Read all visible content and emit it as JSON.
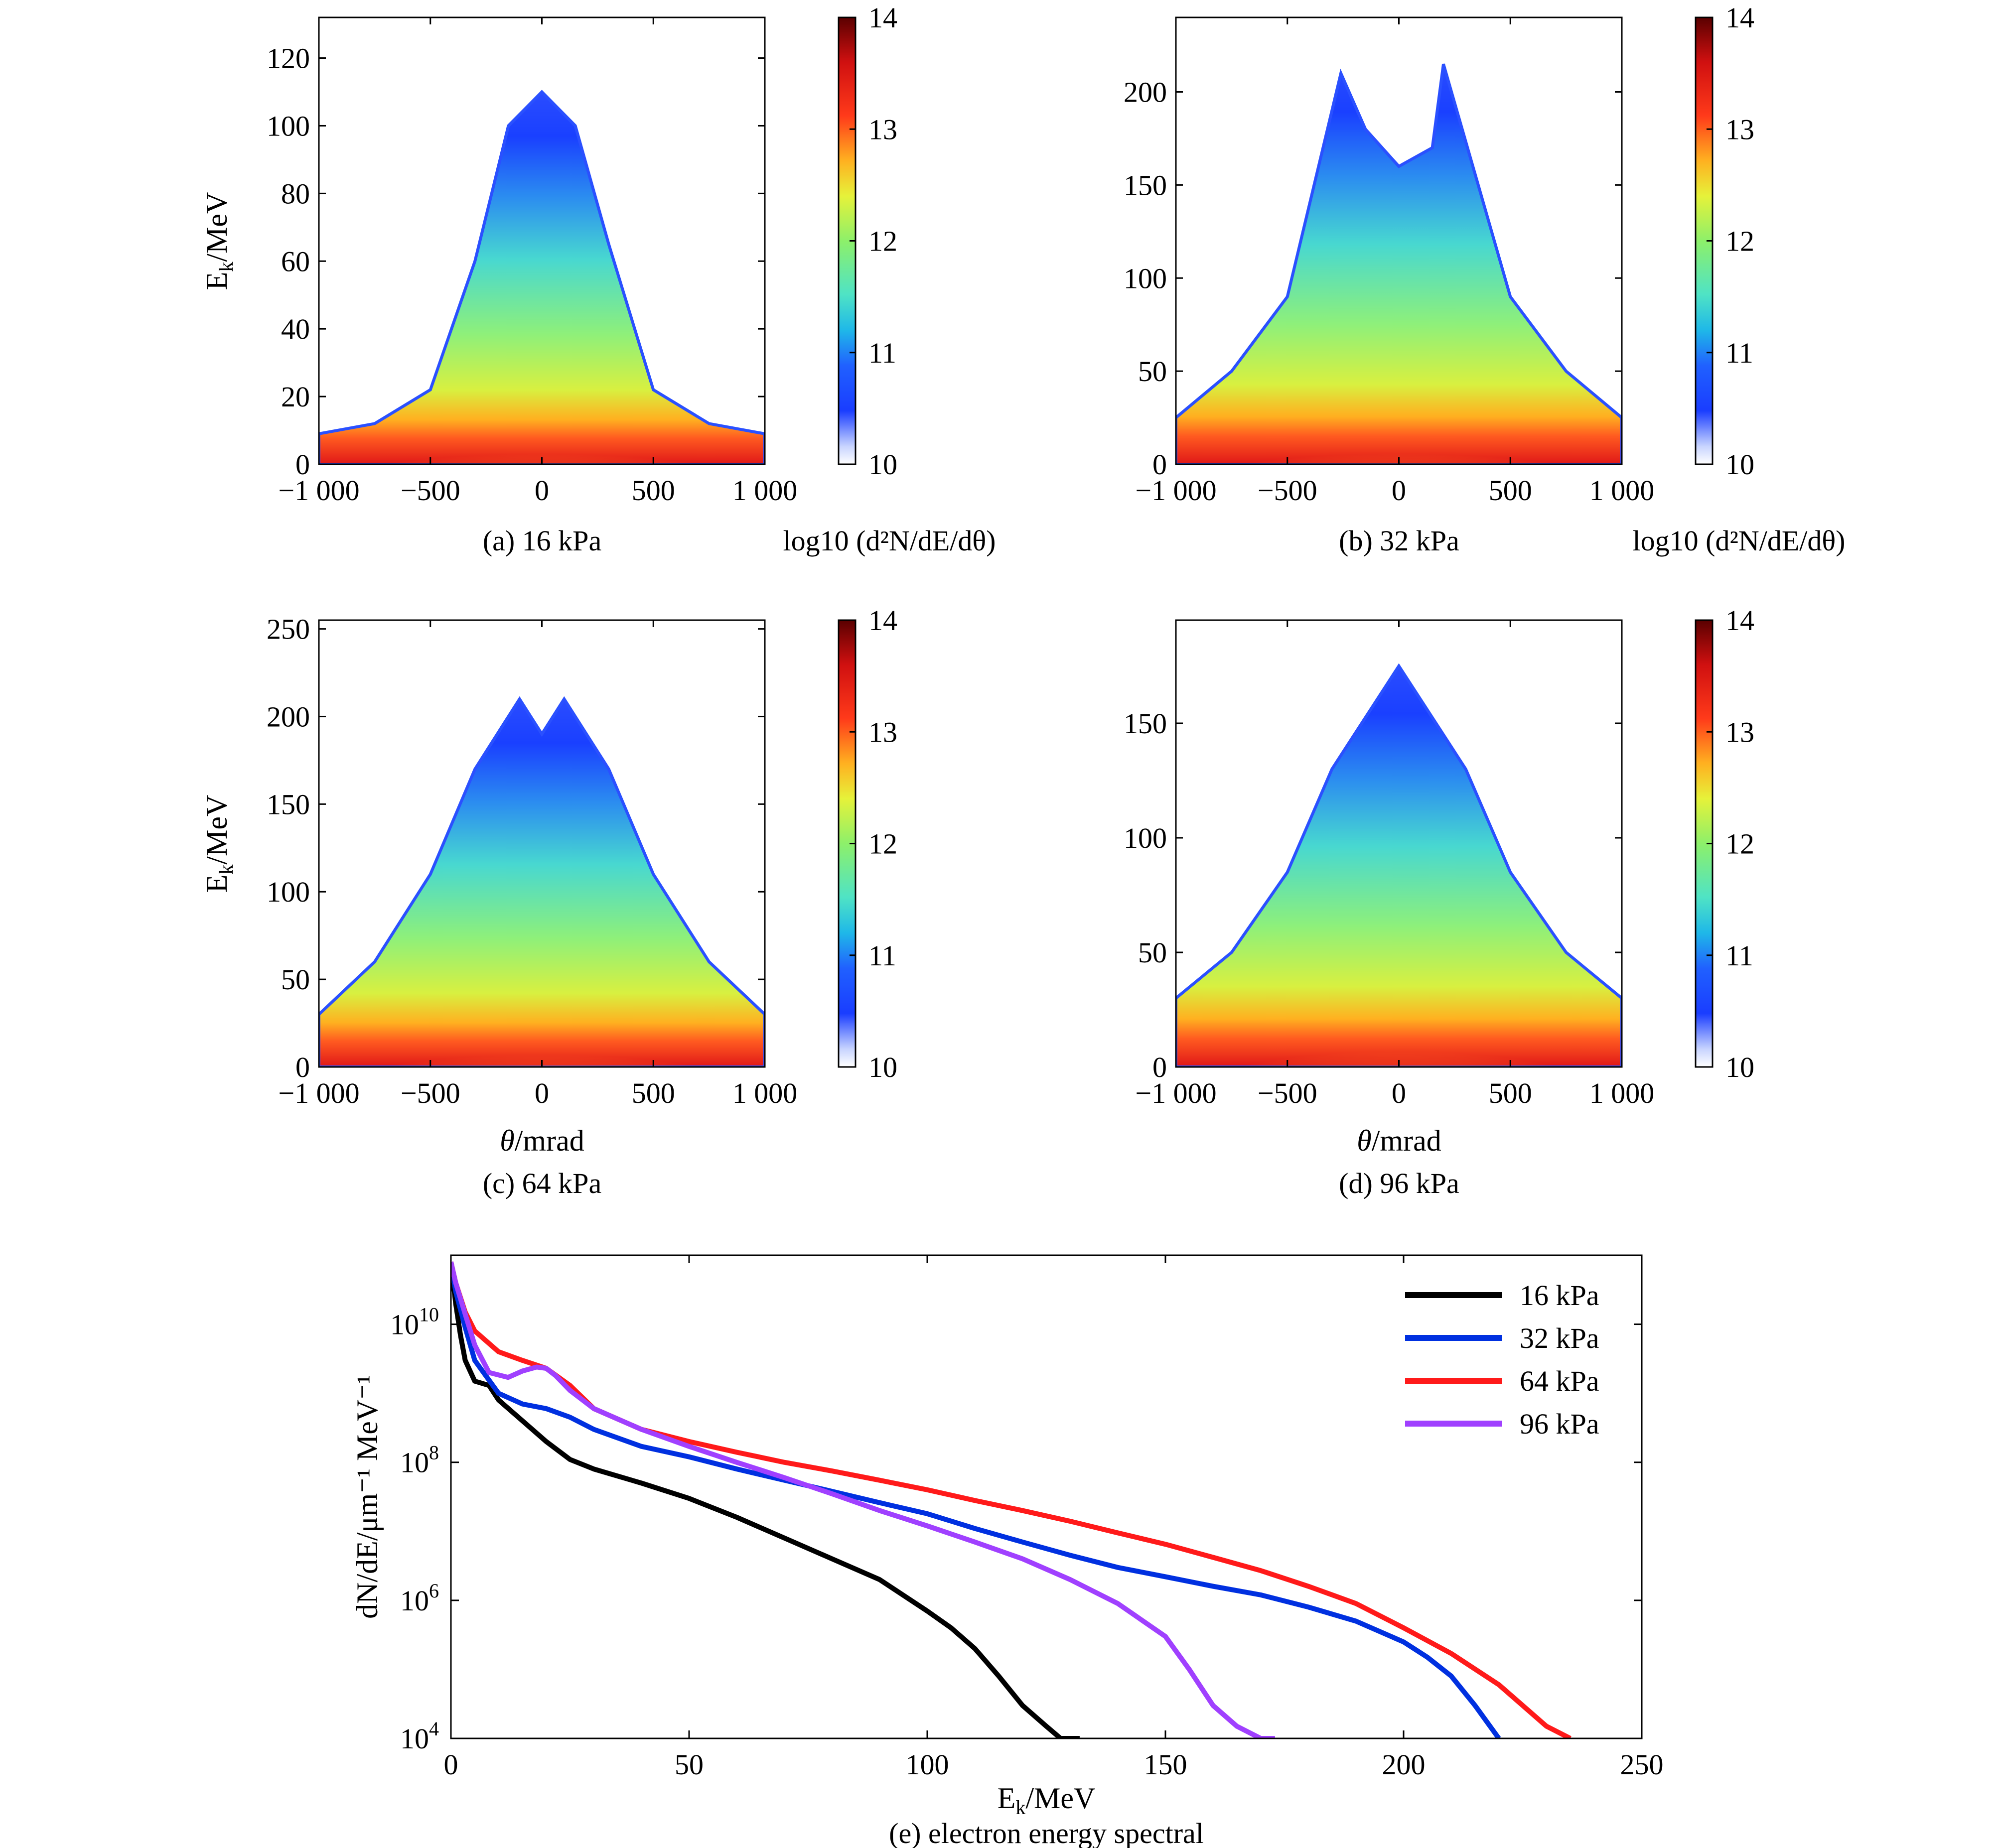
{
  "heatmaps": [
    {
      "caption": "(a) 16 kPa",
      "ylabel": "E",
      "ylabel_sub": "k",
      "ylabel_unit": "/MeV",
      "xlabel": "",
      "xlim": [
        -1000,
        1000
      ],
      "ylim": [
        0,
        132
      ],
      "xticks": [
        "−1 000",
        "−500",
        "0",
        "500",
        "1 000"
      ],
      "xtick_values": [
        -1000,
        -500,
        0,
        500,
        1000
      ],
      "yticks": [
        "0",
        "20",
        "40",
        "60",
        "80",
        "100",
        "120"
      ],
      "ytick_values": [
        0,
        20,
        40,
        60,
        80,
        100,
        120
      ],
      "colorbar_label": "log10 (d²N/dE/dθ)"
    },
    {
      "caption": "(b) 32 kPa",
      "ylabel": "",
      "ylabel_sub": "",
      "ylabel_unit": "",
      "xlabel": "",
      "xlim": [
        -1000,
        1000
      ],
      "ylim": [
        0,
        240
      ],
      "xticks": [
        "−1 000",
        "−500",
        "0",
        "500",
        "1 000"
      ],
      "xtick_values": [
        -1000,
        -500,
        0,
        500,
        1000
      ],
      "yticks": [
        "0",
        "50",
        "100",
        "150",
        "200"
      ],
      "ytick_values": [
        0,
        50,
        100,
        150,
        200
      ],
      "colorbar_label": "log10 (d²N/dE/dθ)"
    },
    {
      "caption": "(c) 64 kPa",
      "ylabel": "E",
      "ylabel_sub": "k",
      "ylabel_unit": "/MeV",
      "xlabel_italic": "θ",
      "xlabel": "/mrad",
      "xlim": [
        -1000,
        1000
      ],
      "ylim": [
        0,
        255
      ],
      "xticks": [
        "−1 000",
        "−500",
        "0",
        "500",
        "1 000"
      ],
      "xtick_values": [
        -1000,
        -500,
        0,
        500,
        1000
      ],
      "yticks": [
        "0",
        "50",
        "100",
        "150",
        "200",
        "250"
      ],
      "ytick_values": [
        0,
        50,
        100,
        150,
        200,
        250
      ],
      "colorbar_label": ""
    },
    {
      "caption": "(d) 96 kPa",
      "ylabel": "",
      "ylabel_sub": "",
      "ylabel_unit": "",
      "xlabel_italic": "θ",
      "xlabel": "/mrad",
      "xlim": [
        -1000,
        1000
      ],
      "ylim": [
        0,
        195
      ],
      "xticks": [
        "−1 000",
        "−500",
        "0",
        "500",
        "1 000"
      ],
      "xtick_values": [
        -1000,
        -500,
        0,
        500,
        1000
      ],
      "yticks": [
        "0",
        "50",
        "100",
        "150"
      ],
      "ytick_values": [
        0,
        50,
        100,
        150
      ],
      "colorbar_label": ""
    }
  ],
  "colorbar": {
    "ticks": [
      "10",
      "11",
      "12",
      "13",
      "14"
    ],
    "tick_values": [
      10,
      11,
      12,
      13,
      14
    ],
    "range": [
      10,
      14
    ]
  },
  "spectrum": {
    "caption": "(e) electron energy spectral",
    "xlabel": "E",
    "xlabel_sub": "k",
    "xlabel_unit": "/MeV",
    "ylabel": "dN/dE/μm⁻¹ MeV⁻¹",
    "xticks": [
      "0",
      "50",
      "100",
      "150",
      "200",
      "250"
    ],
    "xtick_values": [
      0,
      50,
      100,
      150,
      200,
      250
    ],
    "ytick_base": "10",
    "ytick_exponents": [
      "4",
      "6",
      "8",
      "10"
    ],
    "ytick_values": [
      4,
      6,
      8,
      10
    ]
  },
  "chart_data": [
    {
      "type": "heatmap",
      "title": "(a) 16 kPa",
      "xlabel": "",
      "ylabel": "Ek/MeV",
      "xlim": [
        -1000,
        1000
      ],
      "ylim": [
        0,
        132
      ],
      "colorbar": {
        "label": "log10 (d²N/dE/dθ)",
        "range": [
          10,
          14
        ],
        "colormap": "jet"
      },
      "envelope_max_energy_MeV": {
        "theta_mrad": [
          -1000,
          -750,
          -500,
          -300,
          -150,
          0,
          150,
          300,
          500,
          750,
          1000
        ],
        "values": [
          9,
          12,
          22,
          60,
          100,
          110,
          100,
          65,
          22,
          12,
          9
        ]
      },
      "high_density_band_MeV": [
        0,
        15
      ]
    },
    {
      "type": "heatmap",
      "title": "(b) 32 kPa",
      "xlabel": "",
      "ylabel": "",
      "xlim": [
        -1000,
        1000
      ],
      "ylim": [
        0,
        240
      ],
      "colorbar": {
        "label": "log10 (d²N/dE/dθ)",
        "range": [
          10,
          14
        ],
        "colormap": "jet"
      },
      "envelope_max_energy_MeV": {
        "theta_mrad": [
          -1000,
          -750,
          -500,
          -260,
          -150,
          0,
          150,
          200,
          500,
          750,
          1000
        ],
        "values": [
          25,
          50,
          90,
          210,
          180,
          160,
          170,
          215,
          90,
          50,
          25
        ]
      },
      "high_density_band_MeV": [
        0,
        28
      ]
    },
    {
      "type": "heatmap",
      "title": "(c) 64 kPa",
      "xlabel": "θ/mrad",
      "ylabel": "Ek/MeV",
      "xlim": [
        -1000,
        1000
      ],
      "ylim": [
        0,
        255
      ],
      "colorbar": {
        "label": "",
        "range": [
          10,
          14
        ],
        "colormap": "jet"
      },
      "envelope_max_energy_MeV": {
        "theta_mrad": [
          -1000,
          -750,
          -500,
          -300,
          -100,
          0,
          100,
          300,
          500,
          750,
          1000
        ],
        "values": [
          30,
          60,
          110,
          170,
          210,
          190,
          210,
          170,
          110,
          60,
          30
        ]
      },
      "high_density_band_MeV": [
        0,
        35
      ]
    },
    {
      "type": "heatmap",
      "title": "(d) 96 kPa",
      "xlabel": "θ/mrad",
      "ylabel": "",
      "xlim": [
        -1000,
        1000
      ],
      "ylim": [
        0,
        195
      ],
      "colorbar": {
        "label": "",
        "range": [
          10,
          14
        ],
        "colormap": "jet"
      },
      "envelope_max_energy_MeV": {
        "theta_mrad": [
          -1000,
          -750,
          -500,
          -300,
          -100,
          0,
          100,
          300,
          500,
          750,
          1000
        ],
        "values": [
          30,
          50,
          85,
          130,
          160,
          175,
          160,
          130,
          85,
          50,
          30
        ]
      },
      "high_density_band_MeV": [
        0,
        35
      ]
    },
    {
      "type": "line",
      "title": "(e) electron energy spectral",
      "xlabel": "Ek/MeV",
      "ylabel": "dN/dE/μm⁻¹ MeV⁻¹",
      "xlim": [
        0,
        250
      ],
      "ylim": [
        10000,
        100000000000
      ],
      "y_scale": "log",
      "legend_position": "top-right",
      "series": [
        {
          "name": "16 kPa",
          "color": "#000000",
          "x": [
            0,
            1,
            2,
            3,
            5,
            8,
            10,
            15,
            20,
            25,
            30,
            40,
            50,
            60,
            70,
            80,
            90,
            100,
            105,
            110,
            115,
            120,
            125,
            128,
            132
          ],
          "y": [
            80000000000,
            20000000000,
            7000000000,
            3000000000,
            1500000000,
            1300000000,
            800000000,
            400000000,
            200000000,
            110000000,
            80000000,
            50000000,
            30000000,
            16000000,
            8000000,
            4000000,
            2000000,
            700000,
            400000,
            200000,
            80000,
            30000,
            15000,
            10000,
            10000
          ]
        },
        {
          "name": "32 kPa",
          "color": "#0030e0",
          "x": [
            0,
            1,
            3,
            5,
            10,
            15,
            20,
            25,
            30,
            40,
            50,
            60,
            70,
            80,
            90,
            100,
            110,
            120,
            130,
            140,
            150,
            160,
            170,
            180,
            190,
            200,
            205,
            210,
            215,
            220
          ],
          "y": [
            80000000000,
            30000000000,
            9000000000,
            3000000000,
            1000000000,
            700000000,
            600000000,
            450000000,
            300000000,
            170000000,
            120000000,
            80000000,
            55000000,
            38000000,
            26000000,
            18000000,
            11000000,
            7000000,
            4500000,
            3000000,
            2200000,
            1600000,
            1200000,
            800000,
            500000,
            250000,
            150000,
            80000,
            30000,
            10000
          ]
        },
        {
          "name": "64 kPa",
          "color": "#ff1a1a",
          "x": [
            0,
            1,
            3,
            5,
            10,
            15,
            20,
            25,
            30,
            40,
            50,
            60,
            70,
            80,
            90,
            100,
            110,
            120,
            130,
            140,
            150,
            160,
            170,
            180,
            190,
            200,
            210,
            220,
            225,
            230,
            235
          ],
          "y": [
            80000000000,
            40000000000,
            15000000000,
            8000000000,
            4000000000,
            3000000000,
            2300000000,
            1300000000,
            600000000,
            300000000,
            200000000,
            140000000,
            100000000,
            75000000,
            55000000,
            40000000,
            28000000,
            20000000,
            14000000,
            9500000,
            6500000,
            4200000,
            2700000,
            1600000,
            900000,
            400000,
            170000,
            60000,
            30000,
            15000,
            10000
          ]
        },
        {
          "name": "96 kPa",
          "color": "#a040ff",
          "x": [
            0,
            1,
            3,
            5,
            8,
            12,
            15,
            18,
            20,
            22,
            25,
            30,
            40,
            50,
            60,
            70,
            80,
            90,
            100,
            110,
            120,
            130,
            140,
            150,
            155,
            160,
            165,
            170,
            173
          ],
          "y": [
            80000000000,
            40000000000,
            14000000000,
            5000000000,
            2000000000,
            1700000000,
            2100000000,
            2400000000,
            2300000000,
            1800000000,
            1100000000,
            600000000,
            300000000,
            170000000,
            100000000,
            60000000,
            35000000,
            20000000,
            12000000,
            7000000,
            4000000,
            2000000,
            900000,
            300000,
            100000,
            30000,
            15000,
            10000,
            10000
          ]
        }
      ]
    }
  ]
}
